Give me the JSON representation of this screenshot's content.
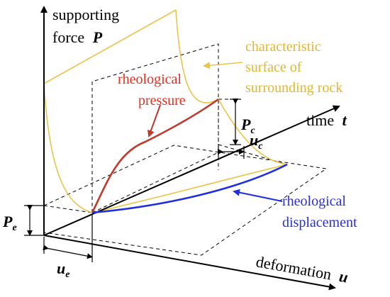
{
  "colors": {
    "axis": "#000000",
    "surface": "#e8c44a",
    "pressure_curve": "#c0392b",
    "pressure_text": "#e03020",
    "displacement_curve": "#1f2ee0",
    "displacement_text": "#2b2fd6",
    "dashed": "#000000",
    "surface_text": "#e0b830"
  },
  "labels": {
    "p_axis_line1": "supporting",
    "p_axis_line2": "force",
    "p_axis_var": "P",
    "time_axis": "time",
    "time_var": "t",
    "deform_axis": "deformation",
    "deform_var": "u",
    "surface_line1": "characteristic",
    "surface_line2": "surface of",
    "surface_line3": "surrounding rock",
    "pressure_line1": "rheological",
    "pressure_line2": "pressure",
    "disp_line1": "rheological",
    "disp_line2": "displacement",
    "pc_main": "P",
    "pc_sub": "c",
    "uc_main": "u",
    "uc_sub": "c",
    "pe_main": "P",
    "pe_sub": "e",
    "ue_main": "u",
    "ue_sub": "e"
  }
}
